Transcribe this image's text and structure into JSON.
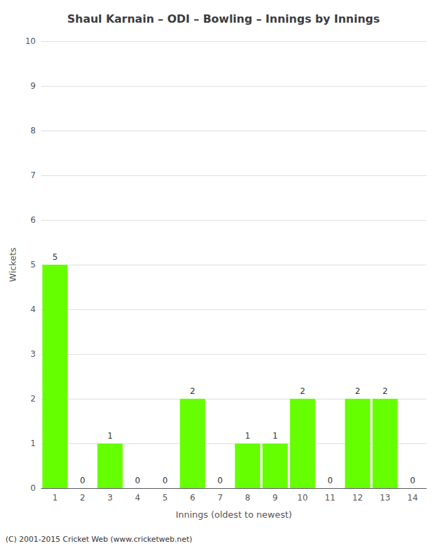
{
  "chart_data": {
    "type": "bar",
    "title": "Shaul Karnain – ODI – Bowling – Innings by Innings",
    "x_label": "Innings (oldest to newest)",
    "y_label": "Wickets",
    "categories": [
      "1",
      "2",
      "3",
      "4",
      "5",
      "6",
      "7",
      "8",
      "9",
      "10",
      "11",
      "12",
      "13",
      "14"
    ],
    "values": [
      5,
      0,
      1,
      0,
      0,
      2,
      0,
      1,
      1,
      2,
      0,
      2,
      2,
      0
    ],
    "color": "#66ff00",
    "ylim": [
      0,
      10
    ],
    "yticks": [
      0,
      1,
      2,
      3,
      4,
      5,
      6,
      7,
      8,
      9,
      10
    ],
    "grid": true,
    "data_labels": true,
    "annotation": "(C) 2001-2015 Cricket Web (www.cricketweb.net)"
  }
}
